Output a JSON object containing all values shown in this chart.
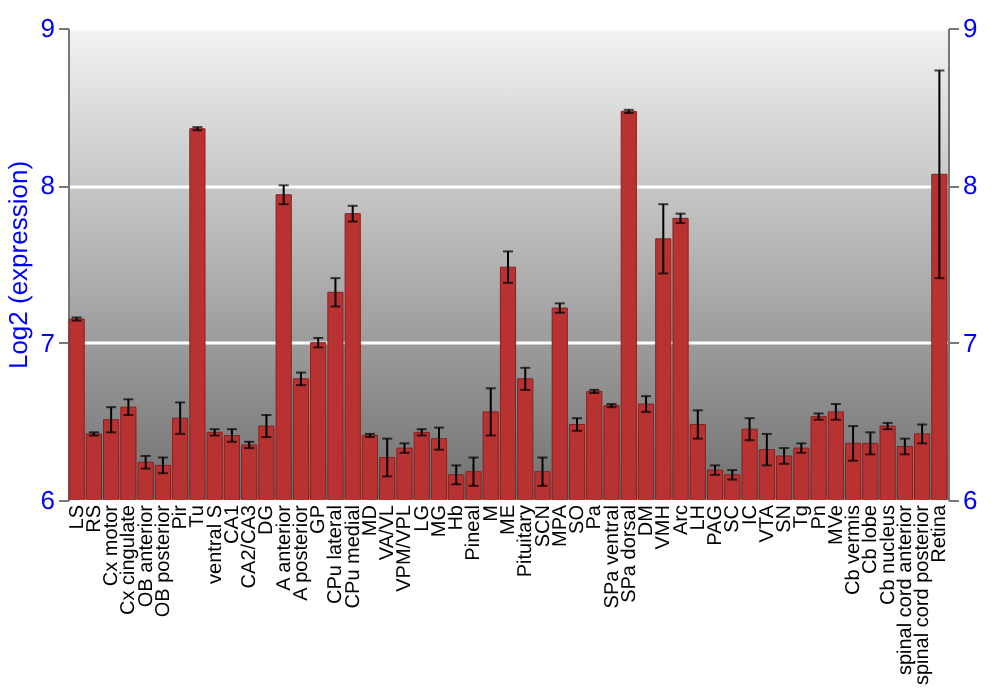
{
  "chart_data": {
    "type": "bar",
    "ylabel": "Log2 (expression)",
    "categories": [
      "LS",
      "RS",
      "Cx motor",
      "Cx cingulate",
      "OB anterior",
      "OB posterior",
      "Pir",
      "Tu",
      "ventral S",
      "CA1",
      "CA2/CA3",
      "DG",
      "A anterior",
      "A posterior",
      "GP",
      "CPu lateral",
      "CPu medial",
      "MD",
      "VA/VL",
      "VPM/VPL",
      "LG",
      "MG",
      "Hb",
      "Pineal",
      "M",
      "ME",
      "Pituitary",
      "SCN",
      "MPA",
      "SO",
      "Pa",
      "SPa ventral",
      "SPa dorsal",
      "DM",
      "VMH",
      "Arc",
      "LH",
      "PAG",
      "SC",
      "IC",
      "VTA",
      "SN",
      "Tg",
      "Pn",
      "MVe",
      "Cb vermis",
      "Cb lobe",
      "Cb nucleus",
      "spinal cord anterior",
      "spinal cord posterior",
      "Retina"
    ],
    "values": [
      7.15,
      6.42,
      6.51,
      6.59,
      6.24,
      6.22,
      6.52,
      8.36,
      6.43,
      6.41,
      6.35,
      6.47,
      7.94,
      6.77,
      7.0,
      7.32,
      7.82,
      6.41,
      6.27,
      6.33,
      6.43,
      6.39,
      6.16,
      6.18,
      6.56,
      7.48,
      6.77,
      6.18,
      7.22,
      6.48,
      6.69,
      6.6,
      8.47,
      6.61,
      7.66,
      7.79,
      6.48,
      6.19,
      6.16,
      6.45,
      6.32,
      6.28,
      6.33,
      6.53,
      6.56,
      6.36,
      6.36,
      6.47,
      6.34,
      6.42,
      8.07
    ],
    "errors": [
      0.01,
      0.01,
      0.08,
      0.05,
      0.04,
      0.05,
      0.1,
      0.01,
      0.02,
      0.04,
      0.02,
      0.07,
      0.06,
      0.04,
      0.03,
      0.09,
      0.05,
      0.01,
      0.12,
      0.03,
      0.02,
      0.07,
      0.06,
      0.09,
      0.15,
      0.1,
      0.07,
      0.09,
      0.03,
      0.04,
      0.01,
      0.01,
      0.01,
      0.05,
      0.22,
      0.03,
      0.09,
      0.03,
      0.03,
      0.07,
      0.1,
      0.05,
      0.03,
      0.02,
      0.05,
      0.11,
      0.07,
      0.02,
      0.05,
      0.06,
      0.66
    ],
    "color": "#b83232",
    "ylim": [
      6,
      9
    ],
    "yticks": [
      6,
      7,
      8,
      9
    ],
    "y2lim": [
      6,
      9
    ],
    "y2ticks": [
      6,
      7,
      8,
      9
    ],
    "grid": "y"
  }
}
